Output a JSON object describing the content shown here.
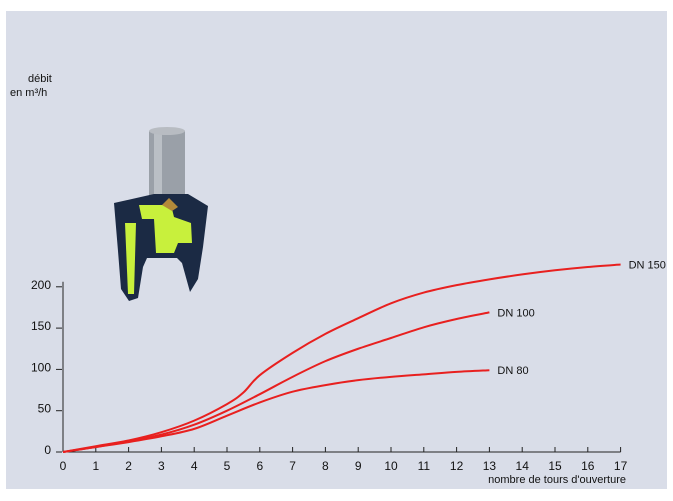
{
  "chart_data": {
    "type": "line",
    "ylabel_line1": "débit",
    "ylabel_line2": "en m³/h",
    "xlabel": "nombre de tours d'ouverture",
    "xlim": [
      0,
      17
    ],
    "ylim": [
      0,
      200
    ],
    "x_ticks": [
      0,
      1,
      2,
      3,
      4,
      5,
      6,
      7,
      8,
      9,
      10,
      11,
      12,
      13,
      14,
      15,
      16,
      17
    ],
    "y_ticks": [
      0,
      50,
      100,
      150,
      200
    ],
    "line_color": "#e8201f",
    "series": [
      {
        "name": "DN 150",
        "x": [
          0,
          1,
          2,
          3,
          4,
          5,
          5.5,
          6,
          7,
          8,
          9,
          10,
          11,
          12,
          13,
          14,
          15,
          16,
          17
        ],
        "y": [
          0,
          7,
          14,
          24,
          38,
          58,
          72,
          93,
          120,
          143,
          162,
          180,
          193,
          202,
          209,
          215,
          220,
          224,
          227
        ]
      },
      {
        "name": "DN 100",
        "x": [
          0,
          1,
          2,
          3,
          4,
          5,
          6,
          7,
          8,
          9,
          10,
          11,
          12,
          13
        ],
        "y": [
          0,
          6,
          13,
          21,
          33,
          50,
          70,
          91,
          110,
          125,
          138,
          151,
          161,
          169
        ]
      },
      {
        "name": "DN 80",
        "x": [
          0,
          1,
          2,
          3,
          4,
          5,
          6,
          7,
          8,
          9,
          10,
          11,
          12,
          13
        ],
        "y": [
          0,
          6,
          12,
          19,
          28,
          44,
          60,
          73,
          81,
          87,
          91,
          94,
          97,
          99
        ]
      }
    ]
  },
  "illustration": {
    "name": "valve-illustration",
    "colors": {
      "metal": "#9aa0a8",
      "body": "#1b2a44",
      "accent": "#c8f03c"
    }
  }
}
